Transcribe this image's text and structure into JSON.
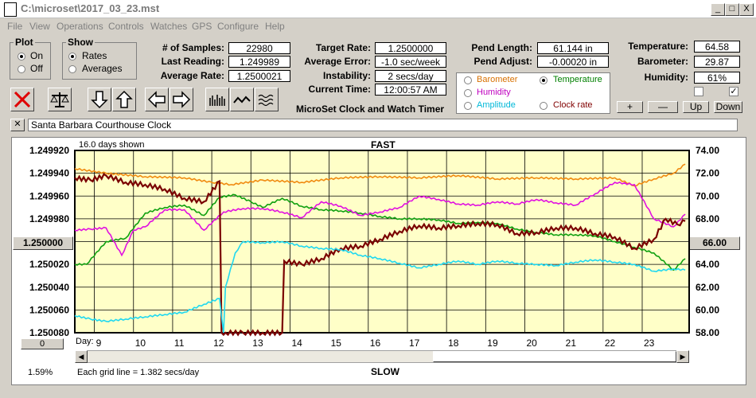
{
  "window": {
    "title": "C:\\microset\\2017_03_23.mst",
    "controls": [
      "_",
      "□",
      "X"
    ]
  },
  "menu": [
    "File",
    "View",
    "Operations",
    "Controls",
    "Watches",
    "GPS",
    "Configure",
    "Help"
  ],
  "plot_group": {
    "legend": "Plot",
    "options": [
      "On",
      "Off"
    ],
    "selected": "On"
  },
  "show_group": {
    "legend": "Show",
    "options": [
      "Rates",
      "Averages"
    ],
    "selected": "Rates"
  },
  "stats": {
    "samples_label": "# of Samples:",
    "samples": "22980",
    "last_reading_label": "Last Reading:",
    "last_reading": "1.249989",
    "avg_rate_label": "Average Rate:",
    "avg_rate": "1.2500021",
    "target_rate_label": "Target Rate:",
    "target_rate": "1.2500000",
    "avg_error_label": "Average Error:",
    "avg_error": "-1.0 sec/week",
    "instability_label": "Instability:",
    "instability": "2 secs/day",
    "current_time_label": "Current Time:",
    "current_time": "12:00:57 AM",
    "pend_length_label": "Pend Length:",
    "pend_length": "61.144 in",
    "pend_adjust_label": "Pend Adjust:",
    "pend_adjust": "-0.00020 in",
    "temperature_label": "Temperature:",
    "temperature": "64.58",
    "barometer_label": "Barometer:",
    "barometer": "29.87",
    "humidity_label": "Humidity:",
    "humidity": "61%"
  },
  "app_caption": "MicroSet Clock and Watch Timer",
  "sensor_select": {
    "options": [
      {
        "label": "Barometer",
        "color": "#d87000"
      },
      {
        "label": "Temperature",
        "color": "#008000"
      },
      {
        "label": "Humidity",
        "color": "#c000c0"
      },
      {
        "label": "Clock rate",
        "color": "#800000"
      },
      {
        "label": "Amplitude",
        "color": "#00b8d8"
      }
    ],
    "selected": "Temperature"
  },
  "right_buttons": [
    "+",
    "—",
    "Up",
    "Down"
  ],
  "checkboxes": [
    false,
    true
  ],
  "clock_name": "Santa Barbara Courthouse Clock",
  "chart_header": {
    "days_shown": "16.0 days shown",
    "fast": "FAST",
    "slow": "SLOW",
    "grid_note": "Each grid line = 1.382 secs/day",
    "percent": "1.59%",
    "day_label": "Day:"
  },
  "left_button": "1.250000",
  "right_button": "66.00",
  "bottom_left_button": "0",
  "colors": {
    "plot_bg": "#ffffc8",
    "barometer": "#f08a10",
    "temperature": "#10a010",
    "humidity": "#e010e0",
    "rate": "#7a0000",
    "amplitude": "#20d8f0"
  },
  "chart_data": {
    "type": "line",
    "x_ticks": [
      9,
      10,
      11,
      12,
      13,
      14,
      15,
      16,
      17,
      18,
      19,
      20,
      21,
      22,
      23
    ],
    "xlim": [
      8.2,
      23.9
    ],
    "y_left": {
      "ticks": [
        "1.249920",
        "1.249940",
        "1.249960",
        "1.249980",
        "1.250000",
        "1.250020",
        "1.250040",
        "1.250060",
        "1.250080"
      ],
      "range": [
        1.24992,
        1.25008
      ]
    },
    "y_right": {
      "ticks": [
        "74.00",
        "72.00",
        "70.00",
        "68.00",
        "66.00",
        "64.00",
        "62.00",
        "60.00",
        "58.00"
      ],
      "range": [
        58,
        74
      ]
    },
    "series": [
      {
        "color_key": "barometer",
        "axis": "right",
        "x": [
          8.2,
          9,
          10,
          11,
          11.7,
          12.2,
          13,
          14,
          15,
          16,
          17,
          18,
          19,
          20,
          21,
          22,
          22.5,
          23,
          23.5,
          23.8
        ],
        "y": [
          72.4,
          72.0,
          71.7,
          71.6,
          71.2,
          71.0,
          71.4,
          71.2,
          71.6,
          71.7,
          71.6,
          71.8,
          71.5,
          71.6,
          71.5,
          71.6,
          70.9,
          71.5,
          72.0,
          72.8
        ]
      },
      {
        "color_key": "temperature",
        "axis": "right",
        "x": [
          8.2,
          8.5,
          9,
          9.5,
          10,
          10.5,
          11,
          11.5,
          11.9,
          12.3,
          12.7,
          13,
          13.5,
          14,
          14.5,
          15,
          15.5,
          16,
          16.5,
          17,
          17.5,
          18,
          18.5,
          19,
          19.5,
          20,
          20.5,
          21,
          21.5,
          22,
          22.5,
          23,
          23.5,
          23.8
        ],
        "y": [
          64.0,
          64.0,
          66.0,
          66.3,
          68.5,
          69.0,
          69.2,
          68.3,
          69.9,
          70.1,
          69.5,
          69.0,
          69.8,
          69.1,
          68.8,
          68.7,
          68.5,
          68.2,
          68.0,
          68.0,
          67.9,
          67.6,
          67.7,
          67.6,
          67.1,
          66.8,
          66.6,
          66.6,
          66.5,
          66.0,
          65.5,
          65.0,
          63.5,
          64.5
        ]
      },
      {
        "color_key": "humidity",
        "axis": "right",
        "x": [
          8.2,
          8.6,
          9,
          9.4,
          9.7,
          10,
          10.5,
          11,
          11.5,
          12,
          12.5,
          13,
          13.5,
          14,
          14.5,
          15,
          15.5,
          16,
          16.5,
          17,
          17.5,
          18,
          18.5,
          19,
          19.5,
          20,
          20.5,
          21,
          21.5,
          22,
          22.5,
          23,
          23.5,
          23.8
        ],
        "y": [
          67.0,
          67.1,
          67.2,
          64.8,
          67.0,
          67.3,
          68.8,
          68.8,
          67.0,
          68.6,
          68.9,
          68.9,
          68.6,
          68.1,
          69.5,
          69.1,
          68.3,
          68.6,
          69.0,
          70.0,
          69.7,
          69.3,
          69.2,
          69.5,
          69.3,
          69.7,
          69.4,
          69.2,
          70.2,
          71.2,
          71.0,
          68.0,
          67.3,
          68.4
        ]
      },
      {
        "color_key": "rate",
        "axis": "left",
        "x": [
          8.2,
          8.6,
          9,
          9.5,
          10,
          10.5,
          11,
          11.5,
          11.9,
          11.95,
          12.05,
          12.5,
          13,
          13.5,
          13.55,
          14,
          14.5,
          15,
          15.5,
          16,
          16.5,
          17,
          17.5,
          18,
          18.5,
          19,
          19.5,
          20,
          20.5,
          21,
          21.5,
          22,
          22.5,
          23,
          23.3,
          23.6,
          23.8
        ],
        "y": [
          1.249944,
          1.249946,
          1.249942,
          1.249948,
          1.24995,
          1.249954,
          1.249962,
          1.249965,
          1.249947,
          1.25008,
          1.25008,
          1.25008,
          1.25008,
          1.25008,
          1.250017,
          1.25002,
          1.250015,
          1.250006,
          1.250004,
          1.249998,
          1.249991,
          1.249986,
          1.249988,
          1.249986,
          1.249984,
          1.249985,
          1.249993,
          1.249992,
          1.249988,
          1.249988,
          1.249993,
          1.249996,
          1.250006,
          1.249998,
          1.24998,
          1.249985,
          1.249982
        ]
      },
      {
        "color_key": "amplitude",
        "axis": "right",
        "x": [
          8.2,
          8.6,
          9,
          9.5,
          10,
          10.5,
          11,
          11.5,
          11.9,
          12.0,
          12.05,
          12.3,
          12.5,
          13,
          13.5,
          14,
          14.5,
          15,
          15.5,
          16,
          16.5,
          17,
          17.5,
          18,
          18.5,
          19,
          19.5,
          20,
          20.5,
          21,
          21.5,
          22,
          22.5,
          23,
          23.5,
          23.8
        ],
        "y": [
          59.5,
          59.2,
          59.0,
          59.2,
          59.4,
          59.6,
          59.8,
          60.5,
          61.0,
          58.0,
          62.0,
          65.0,
          66.0,
          65.9,
          66.0,
          65.6,
          65.4,
          65.3,
          64.8,
          64.5,
          64.1,
          63.7,
          64.0,
          64.3,
          64.0,
          64.3,
          64.1,
          64.0,
          63.9,
          64.2,
          64.4,
          64.2,
          64.0,
          63.4,
          63.6,
          63.5
        ]
      }
    ]
  }
}
